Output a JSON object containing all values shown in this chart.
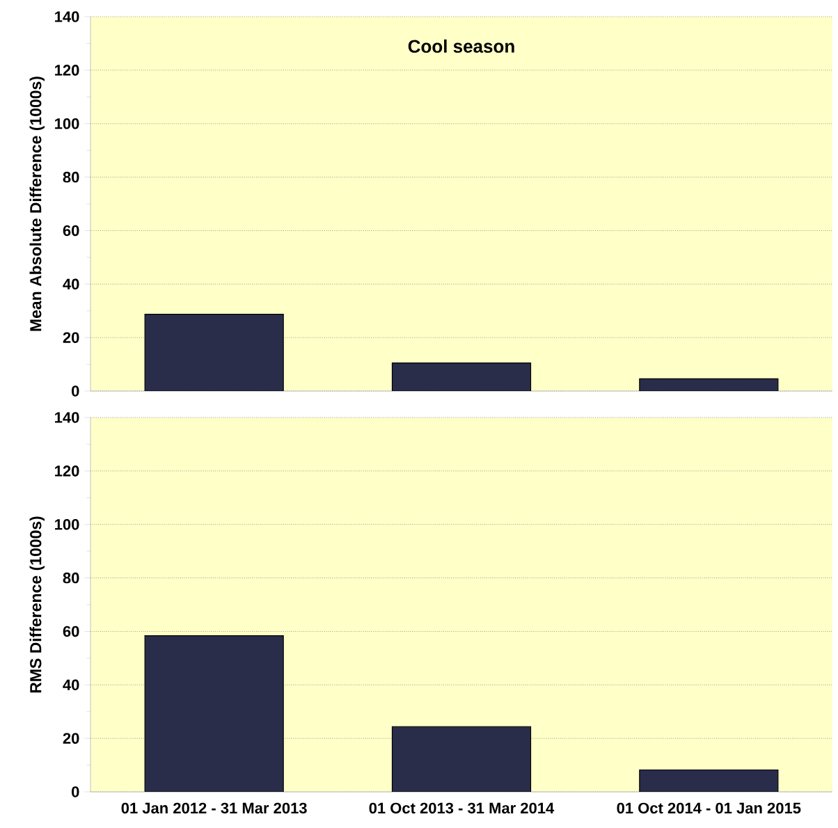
{
  "chart_data": [
    {
      "type": "bar",
      "title": "Cool season",
      "ylabel": "Mean Absolute Difference  (1000s)",
      "categories": [
        null,
        null,
        null
      ],
      "values": [
        28.7,
        10.5,
        4.6
      ],
      "color": "#2a2d4a",
      "ylim": [
        0,
        140
      ],
      "yticks": [
        0,
        20,
        40,
        60,
        80,
        100,
        120,
        140
      ],
      "grid": "y",
      "tick_labels": "y"
    },
    {
      "type": "bar",
      "ylabel": "RMS Difference  (1000s)",
      "categories": [
        "01 Jan 2012 - 31 Mar 2013",
        "01 Oct 2013 - 31 Mar 2014",
        "01 Oct 2014 - 01 Jan 2015"
      ],
      "values": [
        58.4,
        24.4,
        8.2
      ],
      "color": "#2a2d4a",
      "ylim": [
        0,
        140
      ],
      "yticks": [
        0,
        20,
        40,
        60,
        80,
        100,
        120,
        140
      ],
      "grid": "y"
    }
  ]
}
